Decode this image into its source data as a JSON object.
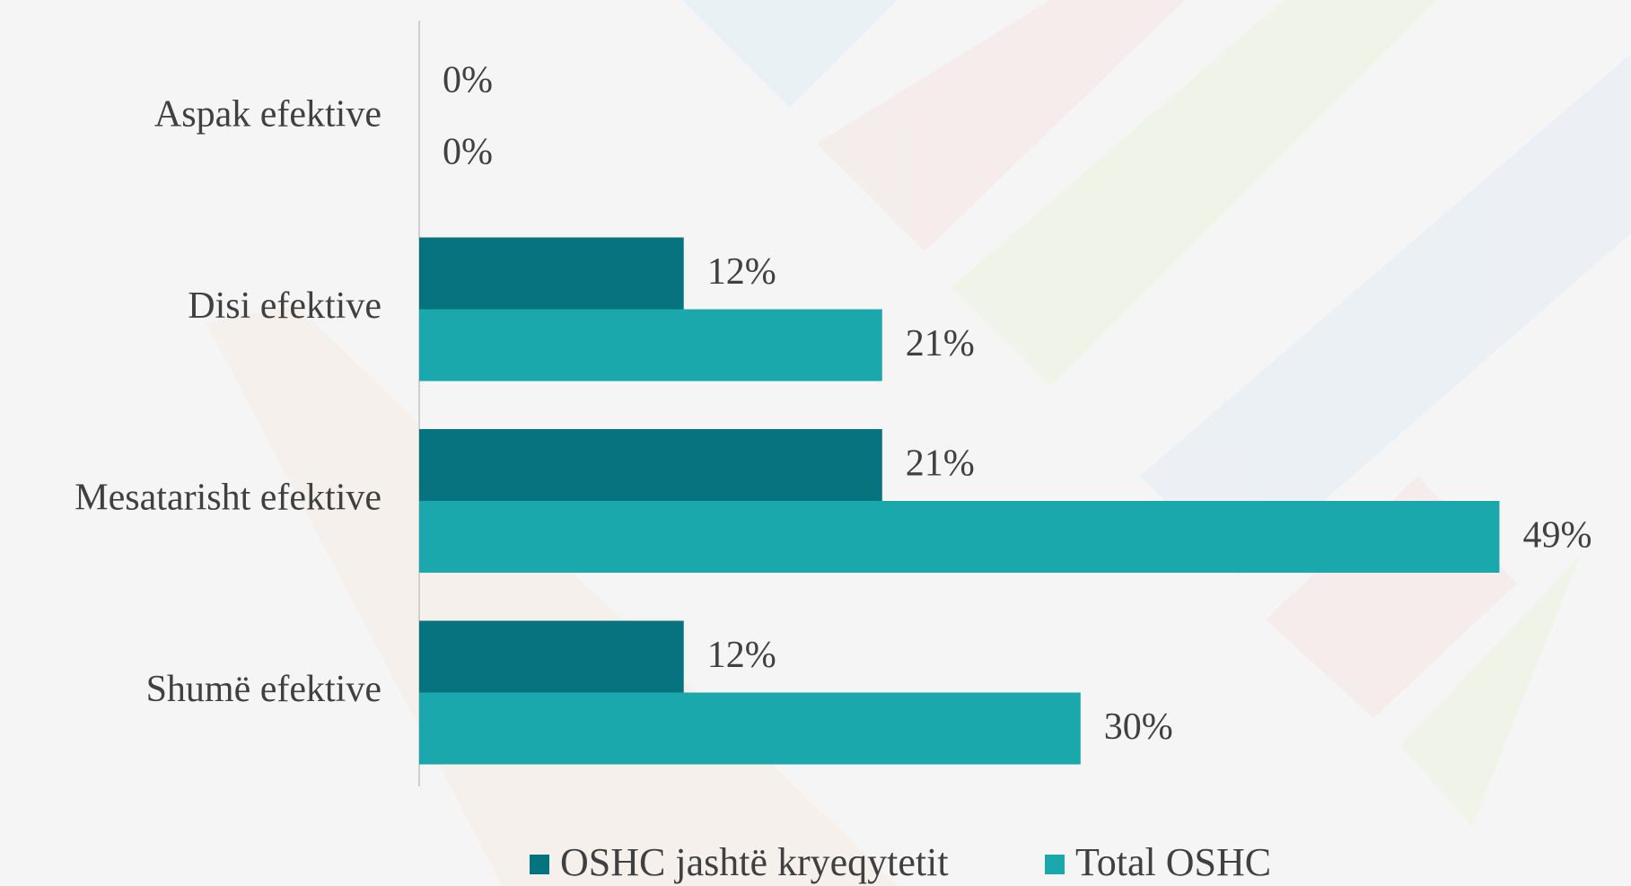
{
  "chart_data": {
    "type": "hbar",
    "categories": [
      "Aspak efektive",
      "Disi efektive",
      "Mesatarisht efektive",
      "Shumë efektive"
    ],
    "series": [
      {
        "name": "OSHC jashtë kryeqytetit",
        "color": "#07737f",
        "values": [
          0,
          12,
          21,
          12
        ],
        "value_labels": [
          "0%",
          "12%",
          "21%",
          "12%"
        ]
      },
      {
        "name": "Total OSHC",
        "color": "#1aa8ad",
        "values": [
          0,
          21,
          49,
          30
        ],
        "value_labels": [
          "0%",
          "21%",
          "49%",
          "30%"
        ]
      }
    ],
    "xlim": [
      0,
      50
    ],
    "legend": "bottom"
  }
}
